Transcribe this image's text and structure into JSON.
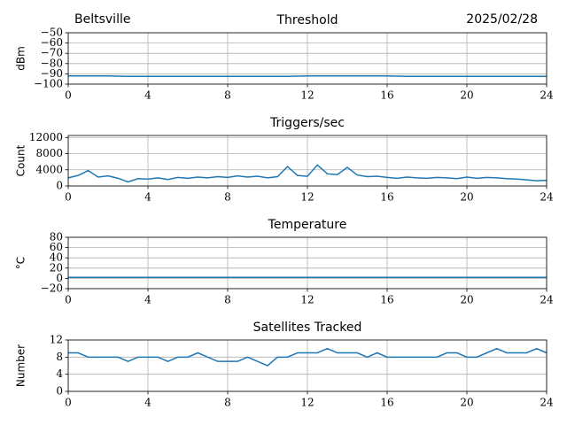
{
  "location": "Beltsville",
  "date": "2025/02/28",
  "chart_data": [
    {
      "type": "line",
      "title": "Threshold",
      "ylabel": "dBm",
      "x": [
        0,
        1,
        2,
        3,
        4,
        5,
        6,
        7,
        8,
        9,
        10,
        11,
        12,
        13,
        14,
        15,
        16,
        17,
        18,
        19,
        20,
        21,
        22,
        23,
        24
      ],
      "series": [
        {
          "name": "Threshold",
          "color": "#1f77b4",
          "values": [
            -92,
            -92,
            -92,
            -92.5,
            -92.5,
            -92.5,
            -92.5,
            -92.5,
            -92.5,
            -92.5,
            -92.5,
            -92.5,
            -92,
            -92,
            -92,
            -92,
            -92,
            -92.5,
            -92.5,
            -92.5,
            -92.5,
            -92.5,
            -92.5,
            -92.5,
            -92.5
          ]
        }
      ],
      "xlim": [
        0,
        24
      ],
      "xticks": [
        0,
        4,
        8,
        12,
        16,
        20,
        24
      ],
      "ylim": [
        -100,
        -50
      ],
      "yticks": [
        {
          "value": -100,
          "label": "−100"
        },
        {
          "value": -90,
          "label": "−90"
        },
        {
          "value": -80,
          "label": "−80"
        },
        {
          "value": -70,
          "label": "−70"
        },
        {
          "value": -60,
          "label": "−60"
        },
        {
          "value": -50,
          "label": "−50"
        }
      ],
      "grid": true
    },
    {
      "type": "line",
      "title": "Triggers/sec",
      "ylabel": "Count",
      "x": [
        0,
        0.5,
        1,
        1.5,
        2,
        2.5,
        3,
        3.5,
        4,
        4.5,
        5,
        5.5,
        6,
        6.5,
        7,
        7.5,
        8,
        8.5,
        9,
        9.5,
        10,
        10.5,
        11,
        11.5,
        12,
        12.5,
        13,
        13.5,
        14,
        14.5,
        15,
        15.5,
        16,
        16.5,
        17,
        17.5,
        18,
        18.5,
        19,
        19.5,
        20,
        20.5,
        21,
        21.5,
        22,
        22.5,
        23,
        23.5,
        24
      ],
      "series": [
        {
          "name": "Triggers/sec",
          "color": "#1f77b4",
          "values": [
            2000,
            2600,
            3800,
            2200,
            2500,
            1900,
            1000,
            1800,
            1700,
            2000,
            1600,
            2100,
            1900,
            2200,
            2000,
            2300,
            2100,
            2500,
            2200,
            2400,
            2000,
            2300,
            4800,
            2600,
            2400,
            5200,
            3000,
            2800,
            4600,
            2700,
            2300,
            2400,
            2100,
            1900,
            2200,
            2000,
            1900,
            2100,
            2000,
            1800,
            2200,
            1900,
            2100,
            2000,
            1800,
            1700,
            1500,
            1300,
            1400
          ]
        }
      ],
      "xlim": [
        0,
        24
      ],
      "xticks": [
        0,
        4,
        8,
        12,
        16,
        20,
        24
      ],
      "ylim": [
        0,
        12500
      ],
      "yticks": [
        0,
        4000,
        8000,
        12000
      ],
      "grid": true
    },
    {
      "type": "line",
      "title": "Temperature",
      "ylabel": "°C",
      "x": [
        0,
        1,
        2,
        3,
        4,
        5,
        6,
        7,
        8,
        9,
        10,
        11,
        12,
        13,
        14,
        15,
        16,
        17,
        18,
        19,
        20,
        21,
        22,
        23,
        24
      ],
      "series": [
        {
          "name": "Temperature",
          "color": "#1f77b4",
          "values": [
            2,
            2,
            2,
            2,
            2,
            2,
            2,
            2,
            2,
            2,
            2,
            2,
            2,
            2,
            2,
            2,
            2,
            2,
            2,
            2,
            2,
            2,
            2,
            2,
            2
          ]
        }
      ],
      "xlim": [
        0,
        24
      ],
      "xticks": [
        0,
        4,
        8,
        12,
        16,
        20,
        24
      ],
      "ylim": [
        -20,
        80
      ],
      "yticks": [
        {
          "value": -20,
          "label": "−20"
        },
        0,
        20,
        40,
        60,
        80
      ],
      "grid": true
    },
    {
      "type": "line",
      "title": "Satellites Tracked",
      "ylabel": "Number",
      "x": [
        0,
        0.5,
        1,
        1.5,
        2,
        2.5,
        3,
        3.5,
        4,
        4.5,
        5,
        5.5,
        6,
        6.5,
        7,
        7.5,
        8,
        8.5,
        9,
        9.5,
        10,
        10.5,
        11,
        11.5,
        12,
        12.5,
        13,
        13.5,
        14,
        14.5,
        15,
        15.5,
        16,
        16.5,
        17,
        17.5,
        18,
        18.5,
        19,
        19.5,
        20,
        20.5,
        21,
        21.5,
        22,
        22.5,
        23,
        23.5,
        24
      ],
      "series": [
        {
          "name": "Satellites Tracked",
          "color": "#1f77b4",
          "values": [
            9,
            9,
            8,
            8,
            8,
            8,
            7,
            8,
            8,
            8,
            7,
            8,
            8,
            9,
            8,
            7,
            7,
            7,
            8,
            7,
            6,
            8,
            8,
            9,
            9,
            9,
            10,
            9,
            9,
            9,
            8,
            9,
            8,
            8,
            8,
            8,
            8,
            8,
            9,
            9,
            8,
            8,
            9,
            10,
            9,
            9,
            9,
            10,
            9
          ]
        }
      ],
      "xlim": [
        0,
        24
      ],
      "xticks": [
        0,
        4,
        8,
        12,
        16,
        20,
        24
      ],
      "ylim": [
        0,
        12
      ],
      "yticks": [
        0,
        4,
        8,
        12
      ],
      "grid": true
    }
  ]
}
